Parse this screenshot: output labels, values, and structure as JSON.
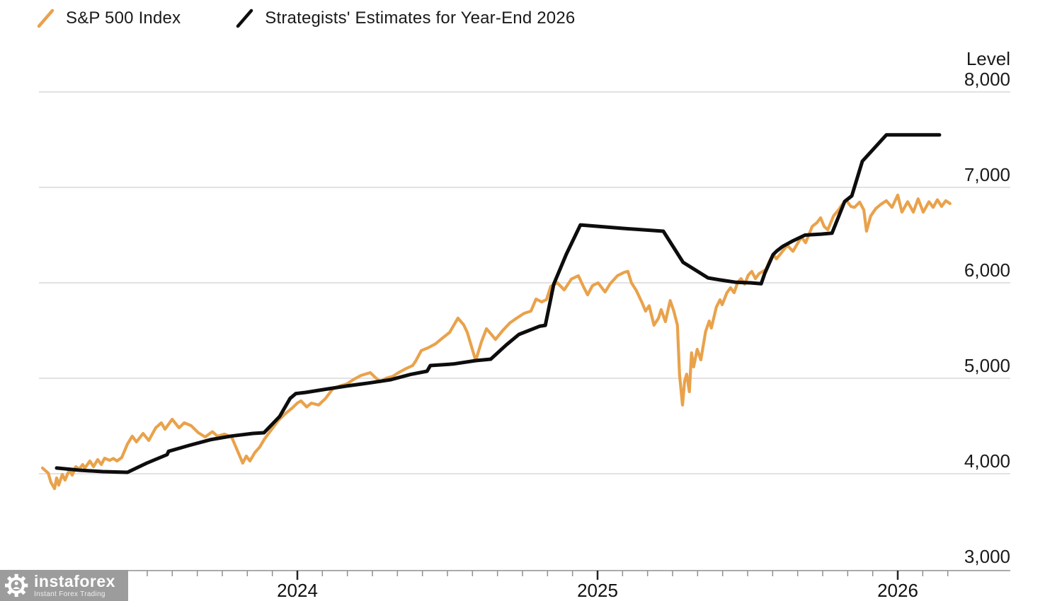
{
  "legend": {
    "series": [
      {
        "label": "S&P 500 Index",
        "color": "#E9A24B"
      },
      {
        "label": "Strategists' Estimates for Year-End 2026",
        "color": "#0d0d0d"
      }
    ]
  },
  "watermark": {
    "brand": "instaforex",
    "tagline": "Instant Forex Trading"
  },
  "chart_data": {
    "type": "line",
    "title": "",
    "y_label": "Level",
    "x_range": [
      2023.13,
      2026.38
    ],
    "y_range": [
      3000,
      8000
    ],
    "grid": "horizontal",
    "legend_position": "top-left",
    "y_ticks": [
      {
        "label": "8,000",
        "value": 8000
      },
      {
        "label": "7,000",
        "value": 7000
      },
      {
        "label": "6,000",
        "value": 6000
      },
      {
        "label": "5,000",
        "value": 5000
      },
      {
        "label": "4,000",
        "value": 4000
      },
      {
        "label": "3,000",
        "value": 3000
      }
    ],
    "x_ticks": [
      {
        "label": "2024",
        "value": 2024
      },
      {
        "label": "2025",
        "value": 2025
      },
      {
        "label": "2026",
        "value": 2026
      }
    ],
    "minor_x_ticks_monthly_from": 2023.1667,
    "minor_x_ticks_monthly_to": 2026.1667,
    "series": [
      {
        "id": "sp500",
        "name": "S&P 500 Index",
        "color": "#E9A24B",
        "width": 4.2,
        "points": [
          [
            2023.151,
            4060
          ],
          [
            2023.17,
            4007
          ],
          [
            2023.179,
            3911
          ],
          [
            2023.191,
            3844
          ],
          [
            2023.198,
            3956
          ],
          [
            2023.205,
            3881
          ],
          [
            2023.217,
            3993
          ],
          [
            2023.226,
            3933
          ],
          [
            2023.24,
            4037
          ],
          [
            2023.25,
            3985
          ],
          [
            2023.262,
            4074
          ],
          [
            2023.274,
            4052
          ],
          [
            2023.285,
            4096
          ],
          [
            2023.292,
            4059
          ],
          [
            2023.309,
            4133
          ],
          [
            2023.321,
            4074
          ],
          [
            2023.335,
            4148
          ],
          [
            2023.347,
            4096
          ],
          [
            2023.358,
            4163
          ],
          [
            2023.375,
            4140
          ],
          [
            2023.387,
            4160
          ],
          [
            2023.399,
            4133
          ],
          [
            2023.415,
            4170
          ],
          [
            2023.434,
            4311
          ],
          [
            2023.45,
            4393
          ],
          [
            2023.464,
            4333
          ],
          [
            2023.486,
            4422
          ],
          [
            2023.505,
            4348
          ],
          [
            2023.528,
            4481
          ],
          [
            2023.547,
            4533
          ],
          [
            2023.559,
            4467
          ],
          [
            2023.583,
            4570
          ],
          [
            2023.606,
            4481
          ],
          [
            2023.623,
            4533
          ],
          [
            2023.646,
            4504
          ],
          [
            2023.67,
            4430
          ],
          [
            2023.693,
            4385
          ],
          [
            2023.717,
            4440
          ],
          [
            2023.734,
            4393
          ],
          [
            2023.757,
            4415
          ],
          [
            2023.781,
            4385
          ],
          [
            2023.795,
            4281
          ],
          [
            2023.811,
            4163
          ],
          [
            2023.818,
            4111
          ],
          [
            2023.83,
            4185
          ],
          [
            2023.842,
            4133
          ],
          [
            2023.858,
            4220
          ],
          [
            2023.875,
            4281
          ],
          [
            2023.889,
            4356
          ],
          [
            2023.913,
            4459
          ],
          [
            2023.936,
            4556
          ],
          [
            2023.96,
            4630
          ],
          [
            2023.983,
            4689
          ],
          [
            2024.0,
            4741
          ],
          [
            2024.012,
            4763
          ],
          [
            2024.031,
            4700
          ],
          [
            2024.047,
            4740
          ],
          [
            2024.071,
            4720
          ],
          [
            2024.094,
            4790
          ],
          [
            2024.118,
            4889
          ],
          [
            2024.142,
            4920
          ],
          [
            2024.165,
            4941
          ],
          [
            2024.189,
            4990
          ],
          [
            2024.212,
            5030
          ],
          [
            2024.243,
            5059
          ],
          [
            2024.259,
            5010
          ],
          [
            2024.276,
            4963
          ],
          [
            2024.295,
            5000
          ],
          [
            2024.318,
            5020
          ],
          [
            2024.337,
            5059
          ],
          [
            2024.361,
            5100
          ],
          [
            2024.384,
            5133
          ],
          [
            2024.394,
            5180
          ],
          [
            2024.413,
            5290
          ],
          [
            2024.436,
            5320
          ],
          [
            2024.46,
            5360
          ],
          [
            2024.483,
            5420
          ],
          [
            2024.507,
            5480
          ],
          [
            2024.535,
            5630
          ],
          [
            2024.554,
            5560
          ],
          [
            2024.566,
            5481
          ],
          [
            2024.594,
            5185
          ],
          [
            2024.613,
            5380
          ],
          [
            2024.63,
            5519
          ],
          [
            2024.646,
            5460
          ],
          [
            2024.66,
            5407
          ],
          [
            2024.684,
            5500
          ],
          [
            2024.708,
            5580
          ],
          [
            2024.731,
            5630
          ],
          [
            2024.755,
            5680
          ],
          [
            2024.778,
            5704
          ],
          [
            2024.795,
            5830
          ],
          [
            2024.814,
            5800
          ],
          [
            2024.83,
            5825
          ],
          [
            2024.844,
            5963
          ],
          [
            2024.866,
            6000
          ],
          [
            2024.889,
            5926
          ],
          [
            2024.913,
            6040
          ],
          [
            2024.936,
            6074
          ],
          [
            2024.953,
            5960
          ],
          [
            2024.967,
            5874
          ],
          [
            2024.983,
            5970
          ],
          [
            2025.002,
            6000
          ],
          [
            2025.025,
            5904
          ],
          [
            2025.042,
            5990
          ],
          [
            2025.066,
            6074
          ],
          [
            2025.089,
            6110
          ],
          [
            2025.101,
            6120
          ],
          [
            2025.113,
            6000
          ],
          [
            2025.129,
            5920
          ],
          [
            2025.148,
            5793
          ],
          [
            2025.16,
            5704
          ],
          [
            2025.172,
            5760
          ],
          [
            2025.188,
            5556
          ],
          [
            2025.203,
            5630
          ],
          [
            2025.212,
            5719
          ],
          [
            2025.226,
            5593
          ],
          [
            2025.242,
            5815
          ],
          [
            2025.254,
            5704
          ],
          [
            2025.266,
            5556
          ],
          [
            2025.273,
            5037
          ],
          [
            2025.283,
            4720
          ],
          [
            2025.29,
            4970
          ],
          [
            2025.297,
            5044
          ],
          [
            2025.306,
            4859
          ],
          [
            2025.313,
            5267
          ],
          [
            2025.32,
            5119
          ],
          [
            2025.332,
            5304
          ],
          [
            2025.344,
            5193
          ],
          [
            2025.36,
            5489
          ],
          [
            2025.372,
            5600
          ],
          [
            2025.379,
            5526
          ],
          [
            2025.396,
            5748
          ],
          [
            2025.408,
            5822
          ],
          [
            2025.415,
            5770
          ],
          [
            2025.431,
            5896
          ],
          [
            2025.443,
            5948
          ],
          [
            2025.455,
            5896
          ],
          [
            2025.467,
            6007
          ],
          [
            2025.478,
            6044
          ],
          [
            2025.49,
            5985
          ],
          [
            2025.502,
            6081
          ],
          [
            2025.514,
            6119
          ],
          [
            2025.526,
            6044
          ],
          [
            2025.538,
            6096
          ],
          [
            2025.561,
            6141
          ],
          [
            2025.573,
            6230
          ],
          [
            2025.585,
            6300
          ],
          [
            2025.596,
            6250
          ],
          [
            2025.632,
            6393
          ],
          [
            2025.651,
            6330
          ],
          [
            2025.679,
            6480
          ],
          [
            2025.693,
            6420
          ],
          [
            2025.715,
            6590
          ],
          [
            2025.731,
            6630
          ],
          [
            2025.743,
            6681
          ],
          [
            2025.755,
            6590
          ],
          [
            2025.767,
            6556
          ],
          [
            2025.786,
            6700
          ],
          [
            2025.802,
            6760
          ],
          [
            2025.814,
            6815
          ],
          [
            2025.828,
            6867
          ],
          [
            2025.844,
            6800
          ],
          [
            2025.856,
            6790
          ],
          [
            2025.873,
            6846
          ],
          [
            2025.887,
            6763
          ],
          [
            2025.896,
            6541
          ],
          [
            2025.91,
            6700
          ],
          [
            2025.927,
            6778
          ],
          [
            2025.943,
            6820
          ],
          [
            2025.962,
            6860
          ],
          [
            2025.981,
            6790
          ],
          [
            2026.0,
            6919
          ],
          [
            2026.014,
            6741
          ],
          [
            2026.033,
            6850
          ],
          [
            2026.052,
            6741
          ],
          [
            2026.068,
            6880
          ],
          [
            2026.085,
            6741
          ],
          [
            2026.104,
            6850
          ],
          [
            2026.118,
            6790
          ],
          [
            2026.132,
            6870
          ],
          [
            2026.146,
            6800
          ],
          [
            2026.16,
            6860
          ],
          [
            2026.174,
            6830
          ]
        ]
      },
      {
        "id": "estimates",
        "name": "Strategists' Estimates for Year-End 2026",
        "color": "#0d0d0d",
        "width": 5,
        "points": [
          [
            2023.198,
            4060
          ],
          [
            2023.274,
            4037
          ],
          [
            2023.351,
            4022
          ],
          [
            2023.434,
            4015
          ],
          [
            2023.498,
            4111
          ],
          [
            2023.566,
            4200
          ],
          [
            2023.571,
            4235
          ],
          [
            2023.639,
            4296
          ],
          [
            2023.71,
            4356
          ],
          [
            2023.781,
            4395
          ],
          [
            2023.852,
            4422
          ],
          [
            2023.889,
            4430
          ],
          [
            2023.941,
            4600
          ],
          [
            2023.976,
            4790
          ],
          [
            2023.995,
            4840
          ],
          [
            2024.028,
            4852
          ],
          [
            2024.094,
            4885
          ],
          [
            2024.165,
            4919
          ],
          [
            2024.236,
            4950
          ],
          [
            2024.311,
            4985
          ],
          [
            2024.377,
            5040
          ],
          [
            2024.432,
            5074
          ],
          [
            2024.443,
            5133
          ],
          [
            2024.519,
            5150
          ],
          [
            2024.594,
            5185
          ],
          [
            2024.644,
            5200
          ],
          [
            2024.696,
            5350
          ],
          [
            2024.738,
            5459
          ],
          [
            2024.807,
            5545
          ],
          [
            2024.826,
            5555
          ],
          [
            2024.854,
            5985
          ],
          [
            2024.896,
            6300
          ],
          [
            2024.943,
            6607
          ],
          [
            2025.085,
            6570
          ],
          [
            2025.219,
            6541
          ],
          [
            2025.285,
            6215
          ],
          [
            2025.368,
            6052
          ],
          [
            2025.408,
            6030
          ],
          [
            2025.462,
            6005
          ],
          [
            2025.509,
            6000
          ],
          [
            2025.545,
            5990
          ],
          [
            2025.557,
            6100
          ],
          [
            2025.585,
            6296
          ],
          [
            2025.597,
            6333
          ],
          [
            2025.616,
            6380
          ],
          [
            2025.651,
            6440
          ],
          [
            2025.691,
            6500
          ],
          [
            2025.745,
            6510
          ],
          [
            2025.781,
            6520
          ],
          [
            2025.823,
            6852
          ],
          [
            2025.847,
            6911
          ],
          [
            2025.882,
            7274
          ],
          [
            2025.962,
            7550
          ],
          [
            2026.139,
            7550
          ]
        ]
      }
    ]
  }
}
